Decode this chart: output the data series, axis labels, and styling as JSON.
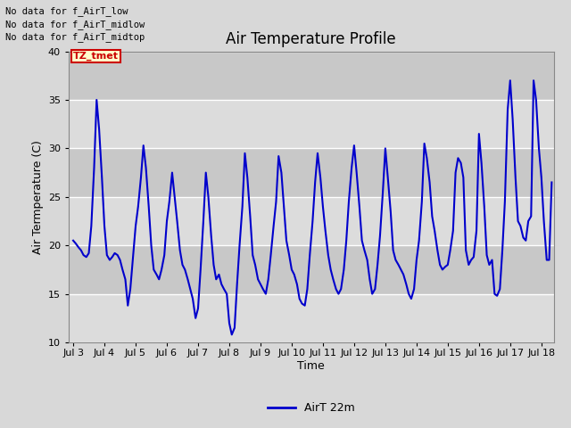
{
  "title": "Air Temperature Profile",
  "xlabel": "Time",
  "ylabel": "Air Termperature (C)",
  "ylim": [
    10,
    40
  ],
  "yticks": [
    10,
    15,
    20,
    25,
    30,
    35,
    40
  ],
  "xtick_labels": [
    "Jul 3",
    "Jul 4",
    "Jul 5",
    "Jul 6",
    "Jul 7",
    "Jul 8",
    "Jul 9",
    "Jul 10",
    "Jul 11",
    "Jul 12",
    "Jul 13",
    "Jul 14",
    "Jul 15",
    "Jul 16",
    "Jul 17",
    "Jul 18"
  ],
  "line_color": "#0000CC",
  "line_width": 1.5,
  "legend_label": "AirT 22m",
  "bg_color": "#D8D8D8",
  "band_light": "#DCDCDC",
  "band_dark": "#C8C8C8",
  "annotations_text": [
    "No data for f_AirT_low",
    "No data for f_AirT_midlow",
    "No data for f_AirT_midtop"
  ],
  "tz_label": "TZ_tmet",
  "tz_color": "#CC0000",
  "tz_bg": "#FFFFCC",
  "time_values": [
    0.0,
    0.08,
    0.17,
    0.25,
    0.33,
    0.42,
    0.5,
    0.58,
    0.67,
    0.75,
    0.83,
    0.92,
    1.0,
    1.08,
    1.17,
    1.25,
    1.33,
    1.42,
    1.5,
    1.58,
    1.67,
    1.75,
    1.83,
    1.92,
    2.0,
    2.08,
    2.17,
    2.25,
    2.33,
    2.42,
    2.5,
    2.58,
    2.67,
    2.75,
    2.83,
    2.92,
    3.0,
    3.08,
    3.17,
    3.25,
    3.33,
    3.42,
    3.5,
    3.58,
    3.67,
    3.75,
    3.83,
    3.92,
    4.0,
    4.08,
    4.17,
    4.25,
    4.33,
    4.42,
    4.5,
    4.58,
    4.67,
    4.75,
    4.83,
    4.92,
    5.0,
    5.08,
    5.17,
    5.25,
    5.33,
    5.42,
    5.5,
    5.58,
    5.67,
    5.75,
    5.83,
    5.92,
    6.0,
    6.08,
    6.17,
    6.25,
    6.33,
    6.42,
    6.5,
    6.58,
    6.67,
    6.75,
    6.83,
    6.92,
    7.0,
    7.08,
    7.17,
    7.25,
    7.33,
    7.42,
    7.5,
    7.58,
    7.67,
    7.75,
    7.83,
    7.92,
    8.0,
    8.08,
    8.17,
    8.25,
    8.33,
    8.42,
    8.5,
    8.58,
    8.67,
    8.75,
    8.83,
    8.92,
    9.0,
    9.08,
    9.17,
    9.25,
    9.33,
    9.42,
    9.5,
    9.58,
    9.67,
    9.75,
    9.83,
    9.92,
    10.0,
    10.08,
    10.17,
    10.25,
    10.33,
    10.42,
    10.5,
    10.58,
    10.67,
    10.75,
    10.83,
    10.92,
    11.0,
    11.08,
    11.17,
    11.25,
    11.33,
    11.42,
    11.5,
    11.58,
    11.67,
    11.75,
    11.83,
    11.92,
    12.0,
    12.08,
    12.17,
    12.25,
    12.33,
    12.42,
    12.5,
    12.58,
    12.67,
    12.75,
    12.83,
    12.92,
    13.0,
    13.08,
    13.17,
    13.25,
    13.33,
    13.42,
    13.5,
    13.58,
    13.67,
    13.75,
    13.83,
    13.92,
    14.0,
    14.08,
    14.17,
    14.25,
    14.33,
    14.42,
    14.5,
    14.58,
    14.67,
    14.75,
    14.83,
    14.92,
    15.0,
    15.08,
    15.17,
    15.25,
    15.33
  ],
  "temp_values": [
    20.5,
    20.2,
    19.8,
    19.5,
    19.0,
    18.8,
    19.2,
    22.0,
    28.0,
    35.0,
    32.0,
    27.0,
    22.0,
    19.0,
    18.5,
    18.8,
    19.2,
    19.0,
    18.5,
    17.5,
    16.5,
    13.8,
    15.5,
    19.0,
    22.0,
    24.0,
    27.0,
    30.3,
    28.0,
    24.0,
    20.0,
    17.5,
    17.0,
    16.5,
    17.5,
    19.0,
    22.5,
    24.5,
    27.5,
    25.0,
    22.5,
    19.5,
    18.0,
    17.5,
    16.5,
    15.5,
    14.5,
    12.5,
    13.5,
    17.5,
    22.5,
    27.5,
    25.0,
    21.0,
    18.0,
    16.5,
    17.0,
    16.0,
    15.5,
    15.0,
    12.0,
    10.8,
    11.5,
    16.0,
    20.0,
    24.0,
    29.5,
    27.0,
    23.0,
    19.0,
    18.0,
    16.5,
    16.0,
    15.5,
    15.0,
    16.5,
    19.0,
    22.0,
    24.5,
    29.2,
    27.5,
    24.0,
    20.5,
    19.0,
    17.5,
    17.0,
    16.0,
    14.5,
    14.0,
    13.8,
    15.5,
    19.0,
    22.5,
    26.5,
    29.5,
    27.0,
    24.0,
    21.5,
    19.0,
    17.5,
    16.5,
    15.5,
    15.0,
    15.5,
    17.5,
    20.5,
    24.5,
    28.0,
    30.3,
    27.5,
    24.0,
    20.5,
    19.5,
    18.5,
    16.5,
    15.0,
    15.5,
    18.0,
    21.0,
    25.5,
    30.0,
    27.0,
    23.5,
    19.5,
    18.5,
    18.0,
    17.5,
    17.0,
    16.0,
    15.0,
    14.5,
    15.5,
    18.5,
    20.5,
    24.5,
    30.5,
    29.0,
    26.5,
    23.0,
    21.5,
    19.5,
    18.0,
    17.5,
    17.8,
    18.0,
    19.5,
    21.5,
    27.5,
    29.0,
    28.5,
    27.0,
    19.5,
    18.0,
    18.5,
    18.8,
    21.5,
    31.5,
    28.5,
    24.0,
    19.0,
    18.0,
    18.5,
    15.0,
    14.8,
    15.5,
    19.5,
    24.5,
    34.0,
    37.0,
    33.0,
    27.0,
    22.5,
    22.0,
    20.8,
    20.5,
    22.5,
    23.0,
    37.0,
    35.0,
    30.0,
    27.0,
    22.5,
    18.5,
    18.5,
    26.5
  ]
}
